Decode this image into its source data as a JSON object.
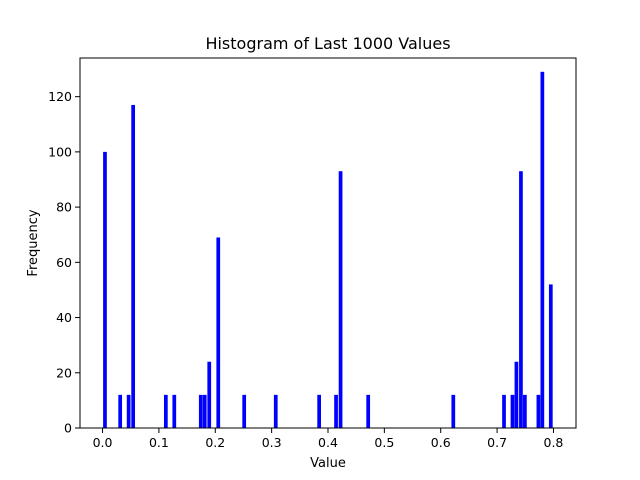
{
  "chart_data": {
    "type": "bar",
    "title": "Histogram of Last 1000 Values",
    "xlabel": "Value",
    "ylabel": "Frequency",
    "xlim": [
      -0.04,
      0.84
    ],
    "ylim": [
      0,
      134
    ],
    "xticks": [
      0.0,
      0.1,
      0.2,
      0.3,
      0.4,
      0.5,
      0.6,
      0.7,
      0.8
    ],
    "xtick_labels": [
      "0.0",
      "0.1",
      "0.2",
      "0.3",
      "0.4",
      "0.5",
      "0.6",
      "0.7",
      "0.8"
    ],
    "yticks": [
      0,
      20,
      40,
      60,
      80,
      100,
      120
    ],
    "ytick_labels": [
      "0",
      "20",
      "40",
      "60",
      "80",
      "100",
      "120"
    ],
    "bin_width": 0.0066,
    "color": "#0000ff",
    "x": [
      0.001,
      0.028,
      0.043,
      0.051,
      0.109,
      0.124,
      0.171,
      0.178,
      0.186,
      0.202,
      0.248,
      0.304,
      0.381,
      0.411,
      0.419,
      0.468,
      0.619,
      0.709,
      0.724,
      0.731,
      0.739,
      0.746,
      0.77,
      0.777,
      0.792
    ],
    "values": [
      100,
      12,
      12,
      117,
      12,
      12,
      12,
      12,
      24,
      69,
      12,
      12,
      12,
      12,
      93,
      12,
      12,
      12,
      12,
      24,
      93,
      12,
      12,
      129,
      52
    ]
  }
}
